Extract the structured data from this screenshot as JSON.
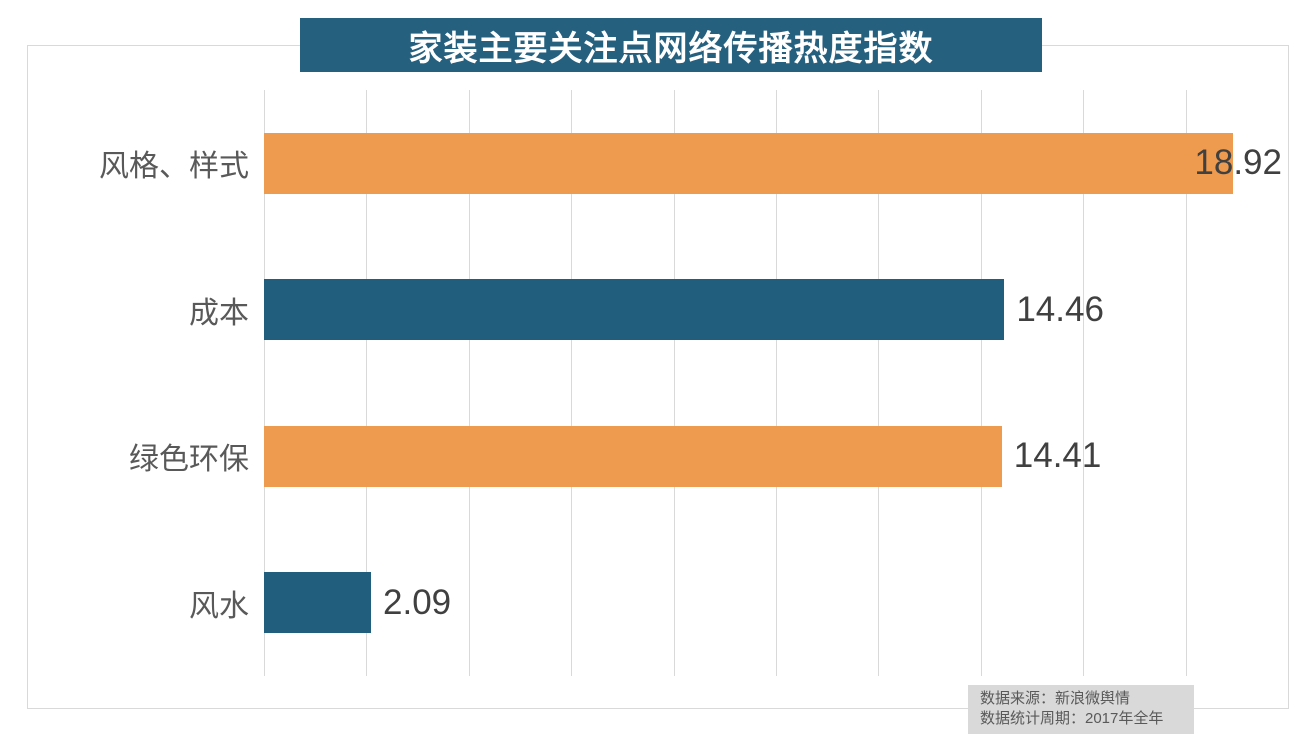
{
  "title": "家装主要关注点网络传播热度指数",
  "source_note": {
    "line1": "数据来源：新浪微舆情",
    "line2": "数据统计周期：2017年全年"
  },
  "colors": {
    "title_bg": "#26607F",
    "bar_teal": "#215D7C",
    "bar_orange": "#EE9A4F",
    "grid": "#D9D9D9",
    "label_text": "#595959",
    "value_text": "#404040",
    "source_bg": "#D9D9D9",
    "source_text": "#595959"
  },
  "chart_data": {
    "type": "bar",
    "orientation": "horizontal",
    "title": "家装主要关注点网络传播热度指数",
    "categories": [
      "风格、样式",
      "成本",
      "绿色环保",
      "风水"
    ],
    "values": [
      18.92,
      14.46,
      14.41,
      2.09
    ],
    "value_labels": [
      "18.92",
      "14.46",
      "14.41",
      "2.09"
    ],
    "bar_color_names": [
      "bar_orange",
      "bar_teal",
      "bar_orange",
      "bar_teal"
    ],
    "xlabel": "",
    "ylabel": "",
    "xlim": [
      0,
      20
    ],
    "gridline_interval": 2,
    "grid": true,
    "legend_position": "none",
    "axis_tick_labels": "none"
  }
}
